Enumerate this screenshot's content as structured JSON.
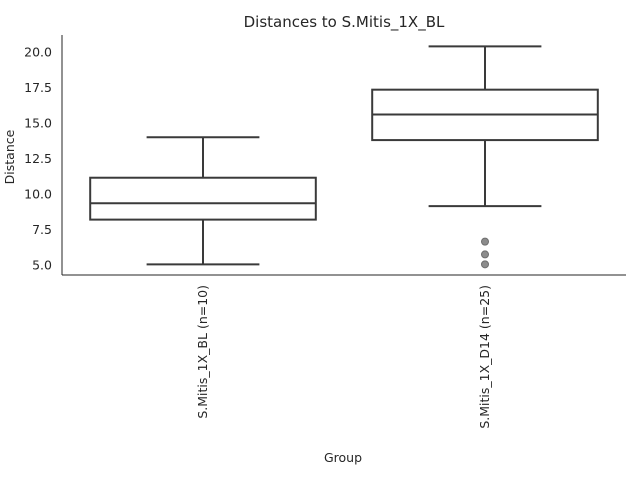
{
  "chart_data": {
    "type": "box",
    "title": "Distances to S.Mitis_1X_BL",
    "xlabel": "Group",
    "ylabel": "Distance",
    "ylim": [
      4.3,
      21.2
    ],
    "yticks": [
      5.0,
      7.5,
      10.0,
      12.5,
      15.0,
      17.5,
      20.0
    ],
    "ytick_labels": [
      "5.0",
      "7.5",
      "10.0",
      "12.5",
      "15.0",
      "17.5",
      "20.0"
    ],
    "grid": false,
    "categories": [
      "S.Mitis_1X_BL (n=10)",
      "S.Mitis_1X_D14 (n=25)"
    ],
    "boxes": [
      {
        "category": "S.Mitis_1X_BL (n=10)",
        "whisker_low": 5.05,
        "q1": 8.2,
        "median": 9.35,
        "q3": 11.15,
        "whisker_high": 14.0,
        "outliers": []
      },
      {
        "category": "S.Mitis_1X_D14 (n=25)",
        "whisker_low": 9.15,
        "q1": 13.8,
        "median": 15.6,
        "q3": 17.35,
        "whisker_high": 20.4,
        "outliers": [
          6.65,
          5.75,
          5.05
        ]
      }
    ]
  }
}
